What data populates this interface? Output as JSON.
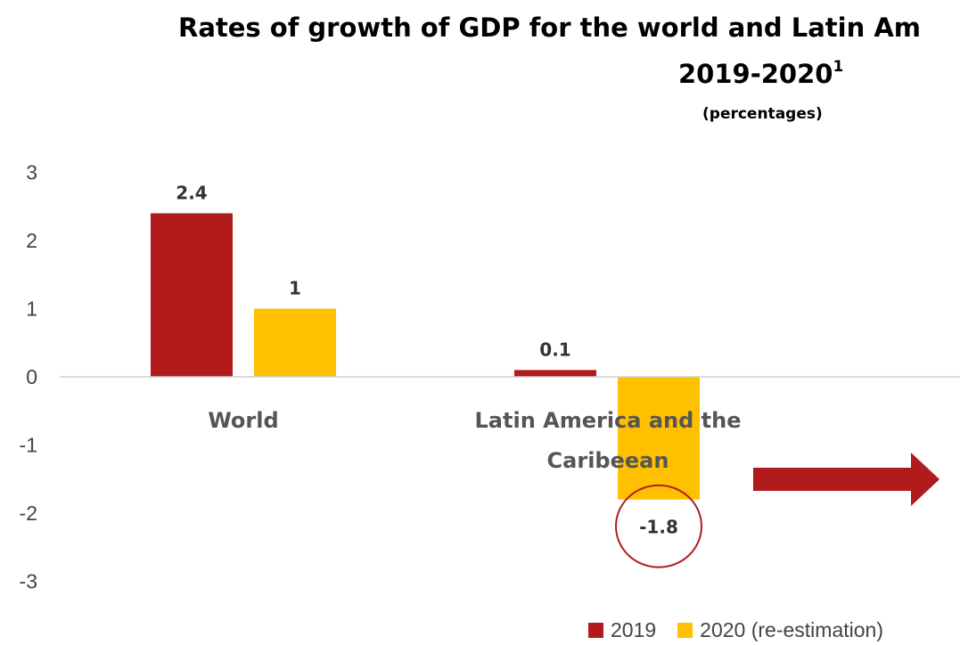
{
  "chart_data": {
    "type": "bar",
    "title": "Rates of growth of GDP for the world and Latin Am",
    "title_line2": "2019-2020",
    "title_superscript": "1",
    "subtitle": "(percentages)",
    "categories": [
      "World",
      "Latin America and the Caribeean"
    ],
    "category_lines": [
      [
        "World"
      ],
      [
        "Latin America and the",
        "Caribeean"
      ]
    ],
    "series": [
      {
        "name": "2019",
        "color": "#B21B1B",
        "values": [
          2.4,
          0.1
        ],
        "labels": [
          "2.4",
          "0.1"
        ]
      },
      {
        "name": "2020 (re-estimation)",
        "color": "#FFC000",
        "values": [
          1,
          -1.8
        ],
        "labels": [
          "1",
          "-1.8"
        ]
      }
    ],
    "ylim": [
      -3,
      3
    ],
    "yticks": [
      "3",
      "2",
      "1",
      "0",
      "-1",
      "-2",
      "-3"
    ],
    "xlabel": "",
    "ylabel": "",
    "grid": false,
    "legend_position": "bottom-right",
    "annotations": {
      "circle_around": "-1.8",
      "arrow": "right",
      "arrow_color": "#B21B1B"
    }
  }
}
